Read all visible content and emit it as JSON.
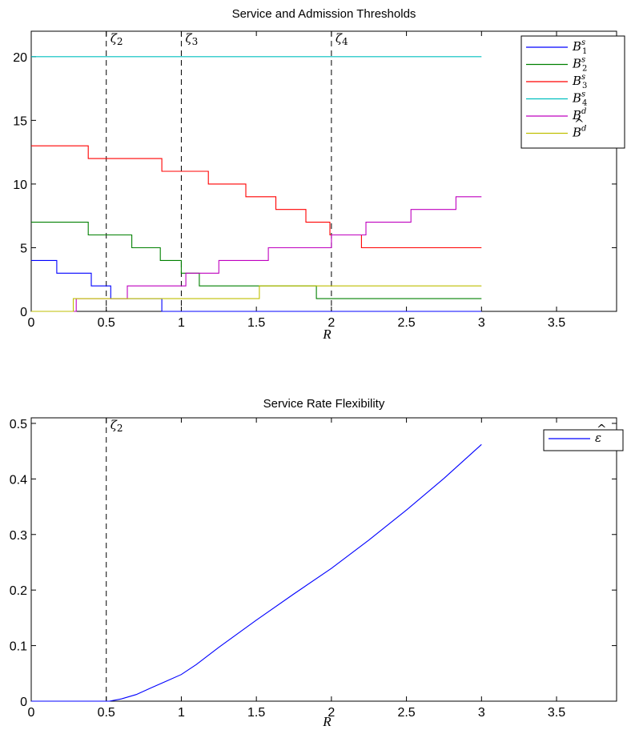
{
  "chart_data": [
    {
      "type": "line",
      "title": "Service and Admission Thresholds",
      "xlabel": "R",
      "ylabel": "",
      "xlim": [
        0,
        3.9
      ],
      "ylim": [
        0,
        22
      ],
      "xticks": [
        "0",
        "0.5",
        "1",
        "1.5",
        "2",
        "2.5",
        "3",
        "3.5"
      ],
      "yticks": [
        "0",
        "5",
        "10",
        "15",
        "20"
      ],
      "legend_position": "top-right",
      "vlines": [
        {
          "x": 0.5,
          "label": "ζ2"
        },
        {
          "x": 1.0,
          "label": "ζ3"
        },
        {
          "x": 2.0,
          "label": "ζ4"
        }
      ],
      "series": [
        {
          "name": "B1s",
          "label_base": "B",
          "label_sup": "s",
          "label_sub": "1",
          "hat": false,
          "color": "#0000ff",
          "step_x": [
            0,
            0.17,
            0.4,
            0.53,
            0.87,
            3.0
          ],
          "step_y": [
            4,
            3,
            2,
            1,
            0
          ]
        },
        {
          "name": "B2s",
          "label_base": "B",
          "label_sup": "s",
          "label_sub": "2",
          "hat": false,
          "color": "#008000",
          "step_x": [
            0,
            0.38,
            0.67,
            0.86,
            1.0,
            1.12,
            1.9,
            3.0
          ],
          "step_y": [
            7,
            6,
            5,
            4,
            3,
            2,
            1
          ]
        },
        {
          "name": "B3s",
          "label_base": "B",
          "label_sup": "s",
          "label_sub": "3",
          "hat": false,
          "color": "#ff0000",
          "step_x": [
            0,
            0.38,
            0.87,
            1.18,
            1.43,
            1.63,
            1.83,
            1.99,
            2.2,
            3.0
          ],
          "step_y": [
            13,
            12,
            11,
            10,
            9,
            8,
            7,
            6,
            5
          ]
        },
        {
          "name": "B4s",
          "label_base": "B",
          "label_sup": "s",
          "label_sub": "4",
          "hat": false,
          "color": "#00bfbf",
          "step_x": [
            0,
            3.0
          ],
          "step_y": [
            20
          ]
        },
        {
          "name": "Bd",
          "label_base": "B",
          "label_sup": "d",
          "label_sub": "",
          "hat": false,
          "color": "#bf00bf",
          "step_x": [
            0,
            0.3,
            0.64,
            1.03,
            1.25,
            1.58,
            2.0,
            2.23,
            2.53,
            2.83,
            3.0
          ],
          "step_y": [
            0,
            1,
            2,
            3,
            4,
            5,
            6,
            7,
            8,
            9
          ]
        },
        {
          "name": "B̂d",
          "label_base": "B",
          "label_sup": "d",
          "label_sub": "",
          "hat": true,
          "color": "#bfbf00",
          "step_x": [
            0,
            0.28,
            1.52,
            3.0
          ],
          "step_y": [
            0,
            1,
            2
          ]
        }
      ]
    },
    {
      "type": "line",
      "title": "Service Rate Flexibility",
      "xlabel": "R",
      "ylabel": "",
      "xlim": [
        0,
        3.9
      ],
      "ylim": [
        0,
        0.51
      ],
      "xticks": [
        "0",
        "0.5",
        "1",
        "1.5",
        "2",
        "2.5",
        "3",
        "3.5"
      ],
      "yticks": [
        "0",
        "0.1",
        "0.2",
        "0.3",
        "0.4",
        "0.5"
      ],
      "legend_position": "top-right",
      "vlines": [
        {
          "x": 0.5,
          "label": "ζ2"
        }
      ],
      "series": [
        {
          "name": "ε̂",
          "label_base": "ε",
          "label_sup": "",
          "label_sub": "",
          "hat": true,
          "color": "#0000ff",
          "x": [
            0,
            0.5,
            0.52,
            0.6,
            0.7,
            0.8,
            0.9,
            1.0,
            1.1,
            1.25,
            1.5,
            1.75,
            2.0,
            2.25,
            2.5,
            2.75,
            3.0
          ],
          "y": [
            0,
            0,
            0,
            0.004,
            0.012,
            0.024,
            0.036,
            0.048,
            0.066,
            0.097,
            0.146,
            0.193,
            0.239,
            0.29,
            0.344,
            0.401,
            0.462
          ]
        }
      ]
    }
  ]
}
